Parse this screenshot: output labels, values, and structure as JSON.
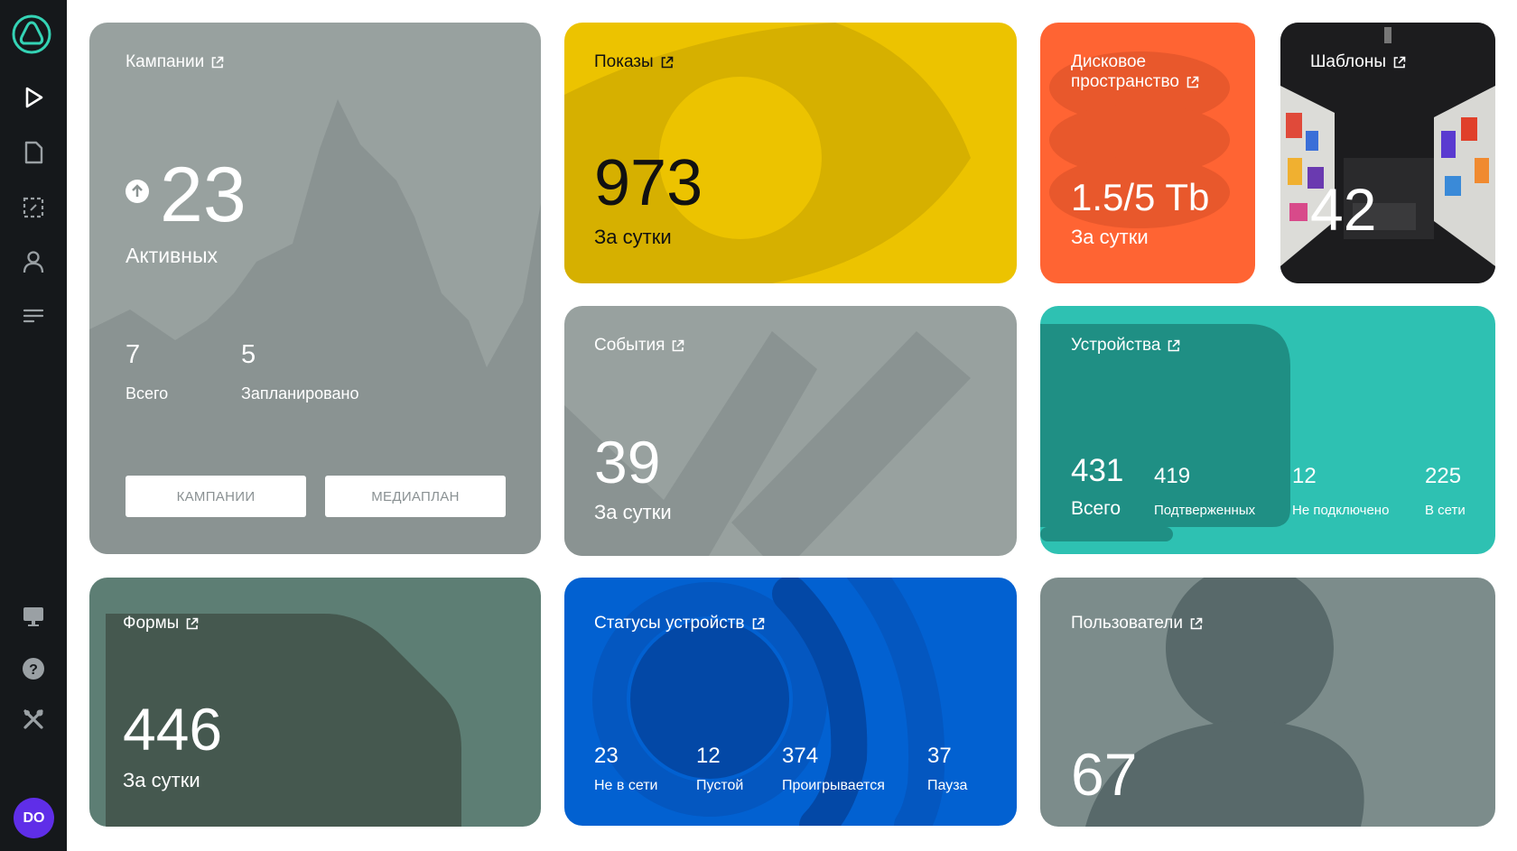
{
  "user": {
    "initials": "DO"
  },
  "colors": {
    "sidebar": "#15181b",
    "accent": "#34d3b5",
    "avatar": "#5f2ee8",
    "campaigns": "#98a19f",
    "impressions": "#ecc300",
    "disk": "#ff6433",
    "events": "#98a19f",
    "devices": "#2ec1b2",
    "forms": "#5d7e74",
    "device_statuses": "#0261d1",
    "users": "#7c8c8b"
  },
  "sidebar": {
    "icons": [
      "logo-icon",
      "play-icon",
      "file-icon",
      "select-icon",
      "user-icon",
      "list-icon",
      "monitor-icon",
      "help-icon",
      "tools-icon"
    ]
  },
  "campaigns": {
    "title": "Кампании",
    "value": "23",
    "value_label": "Активных",
    "total": "7",
    "total_label": "Всего",
    "planned": "5",
    "planned_label": "Запланировано",
    "btn_campaigns": "КАМПАНИИ",
    "btn_mediaplan": "МЕДИАПЛАН"
  },
  "impressions": {
    "title": "Показы",
    "value": "973",
    "label": "За сутки"
  },
  "disk": {
    "title_line1": "Дисковое",
    "title_line2": "пространство",
    "value": "1.5/5 Tb",
    "label": "За сутки"
  },
  "templates": {
    "title": "Шаблоны",
    "value": "42"
  },
  "events": {
    "title": "События",
    "value": "39",
    "label": "За сутки"
  },
  "devices": {
    "title": "Устройства",
    "total": "431",
    "total_label": "Всего",
    "confirmed": "419",
    "confirmed_label": "Подтверженных",
    "not_connected": "12",
    "not_connected_label": "Не подключено",
    "online": "225",
    "online_label": "В сети"
  },
  "forms": {
    "title": "Формы",
    "value": "446",
    "label": "За сутки"
  },
  "device_statuses": {
    "title": "Статусы устройств",
    "offline": "23",
    "offline_label": "Не в сети",
    "empty": "12",
    "empty_label": "Пустой",
    "playing": "374",
    "playing_label": "Проигрывается",
    "paused": "37",
    "paused_label": "Пауза"
  },
  "users": {
    "title": "Пользователи",
    "value": "67"
  }
}
